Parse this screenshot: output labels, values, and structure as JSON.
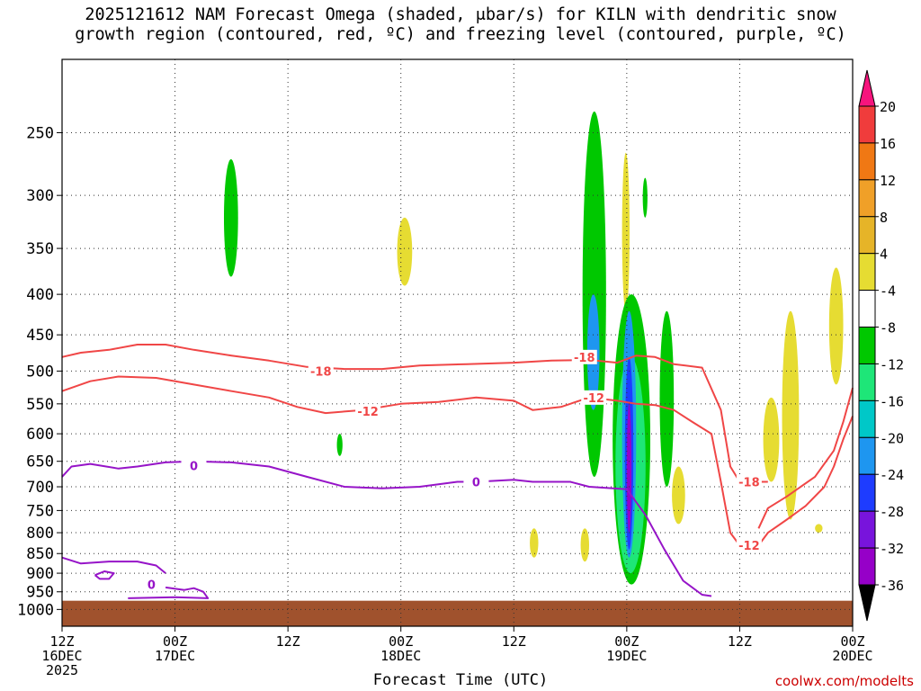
{
  "title_line1": "2025121612 NAM Forecast Omega (shaded, μbar/s) for KILN with dendritic snow",
  "title_line2": "growth region (contoured, red, ºC) and freezing level (contoured, purple, ºC)",
  "xlabel": "Forecast Time (UTC)",
  "source": "coolwx.com/modelts",
  "chart_data": {
    "type": "heatmap",
    "title": "2025121612 NAM Forecast Omega (shaded, μbar/s) for KILN with dendritic snow growth region (contoured, red, ºC) and freezing level (contoured, purple, ºC)",
    "xlabel": "Forecast Time (UTC)",
    "ylabel": "",
    "x_range_hours": [
      0,
      84
    ],
    "x_ticks": [
      {
        "h": 0,
        "l1": "12Z",
        "l2": "16DEC",
        "l3": "2025"
      },
      {
        "h": 12,
        "l1": "00Z",
        "l2": "17DEC",
        "l3": ""
      },
      {
        "h": 24,
        "l1": "12Z",
        "l2": "",
        "l3": ""
      },
      {
        "h": 36,
        "l1": "00Z",
        "l2": "18DEC",
        "l3": ""
      },
      {
        "h": 48,
        "l1": "12Z",
        "l2": "",
        "l3": ""
      },
      {
        "h": 60,
        "l1": "00Z",
        "l2": "19DEC",
        "l3": ""
      },
      {
        "h": 72,
        "l1": "12Z",
        "l2": "",
        "l3": ""
      },
      {
        "h": 84,
        "l1": "00Z",
        "l2": "20DEC",
        "l3": ""
      }
    ],
    "y_scale": "log-pressure",
    "y_range_hpa": [
      200,
      1050
    ],
    "y_ticks": [
      250,
      300,
      350,
      400,
      450,
      500,
      550,
      600,
      650,
      700,
      750,
      800,
      850,
      900,
      950,
      1000
    ],
    "grid": true,
    "ground_top_hpa": 975,
    "colorbar": {
      "levels": [
        20,
        16,
        12,
        8,
        4,
        -4,
        -8,
        -12,
        -16,
        -20,
        -24,
        -28,
        -32,
        -36
      ],
      "colors": [
        "#f7147d",
        "#f03c3c",
        "#f07814",
        "#f0a028",
        "#e6b428",
        "#e6dc32",
        "#ffffff",
        "#00c800",
        "#1ee678",
        "#00c8c8",
        "#1e96f0",
        "#1e3cff",
        "#7814dc",
        "#9600c8",
        "#a0a0a0",
        "#000000"
      ]
    },
    "contours": [
      {
        "label": "-18",
        "color": "#f04646",
        "labels_at": [
          [
            27.5,
            500
          ],
          [
            55.5,
            480
          ],
          [
            73,
            690
          ]
        ],
        "points": [
          [
            0,
            480
          ],
          [
            2,
            474
          ],
          [
            5,
            470
          ],
          [
            8,
            463
          ],
          [
            11,
            463
          ],
          [
            14,
            470
          ],
          [
            18,
            478
          ],
          [
            22,
            485
          ],
          [
            26,
            494
          ],
          [
            30,
            497
          ],
          [
            34,
            497
          ],
          [
            38,
            492
          ],
          [
            43,
            490
          ],
          [
            48,
            488
          ],
          [
            52,
            485
          ],
          [
            56,
            484
          ],
          [
            59,
            488
          ],
          [
            61,
            478
          ],
          [
            63,
            480
          ],
          [
            65,
            490
          ],
          [
            68,
            495
          ],
          [
            70,
            560
          ],
          [
            71,
            660
          ],
          [
            72,
            690
          ],
          [
            74,
            690
          ],
          [
            75,
            690
          ]
        ]
      },
      {
        "label": "-12",
        "color": "#f04646",
        "labels_at": [
          [
            32.5,
            562
          ],
          [
            56.5,
            540
          ],
          [
            73,
            830
          ]
        ],
        "points": [
          [
            0,
            530
          ],
          [
            3,
            515
          ],
          [
            6,
            508
          ],
          [
            10,
            510
          ],
          [
            14,
            520
          ],
          [
            18,
            530
          ],
          [
            22,
            540
          ],
          [
            25,
            555
          ],
          [
            28,
            565
          ],
          [
            32,
            560
          ],
          [
            36,
            550
          ],
          [
            40,
            547
          ],
          [
            44,
            540
          ],
          [
            48,
            545
          ],
          [
            50,
            560
          ],
          [
            53,
            555
          ],
          [
            56,
            540
          ],
          [
            59,
            545
          ],
          [
            61,
            550
          ],
          [
            63,
            552
          ],
          [
            65,
            560
          ],
          [
            67,
            580
          ],
          [
            69,
            600
          ],
          [
            70,
            690
          ],
          [
            71,
            800
          ],
          [
            72,
            830
          ],
          [
            74,
            830
          ],
          [
            75,
            800
          ],
          [
            77,
            770
          ],
          [
            79,
            740
          ],
          [
            81,
            700
          ],
          [
            82,
            660
          ],
          [
            83,
            610
          ],
          [
            84,
            570
          ]
        ]
      },
      {
        "label": "-18",
        "color": "#f04646",
        "labels_at": [],
        "points": [
          [
            74,
            790
          ],
          [
            75,
            745
          ],
          [
            77,
            720
          ],
          [
            80,
            680
          ],
          [
            82,
            630
          ],
          [
            83,
            580
          ],
          [
            84,
            525
          ]
        ]
      },
      {
        "label": "0",
        "color": "#9614c8",
        "labels_at": [
          [
            14,
            658
          ],
          [
            44,
            690
          ]
        ],
        "points": [
          [
            0,
            680
          ],
          [
            1,
            660
          ],
          [
            3,
            655
          ],
          [
            6,
            664
          ],
          [
            8,
            660
          ],
          [
            11,
            652
          ],
          [
            14,
            650
          ],
          [
            18,
            652
          ],
          [
            22,
            660
          ],
          [
            26,
            680
          ],
          [
            30,
            700
          ],
          [
            34,
            703
          ],
          [
            38,
            700
          ],
          [
            42,
            690
          ],
          [
            44,
            690
          ],
          [
            46,
            688
          ],
          [
            48,
            686
          ],
          [
            50,
            690
          ],
          [
            54,
            690
          ],
          [
            56,
            700
          ],
          [
            60,
            705
          ],
          [
            62,
            760
          ],
          [
            64,
            840
          ],
          [
            66,
            920
          ],
          [
            68,
            958
          ],
          [
            69,
            962
          ]
        ]
      },
      {
        "label": "",
        "color": "#9614c8",
        "labels_at": [],
        "points": [
          [
            0,
            860
          ],
          [
            2,
            875
          ],
          [
            5,
            870
          ],
          [
            8,
            870
          ],
          [
            10,
            880
          ],
          [
            11,
            900
          ]
        ]
      },
      {
        "label": "",
        "color": "#9614c8",
        "labels_at": [],
        "points": [
          [
            3.5,
            905
          ],
          [
            4.5,
            895
          ],
          [
            5.5,
            900
          ],
          [
            5,
            915
          ],
          [
            4,
            915
          ],
          [
            3.5,
            905
          ]
        ]
      },
      {
        "label": "0",
        "color": "#9614c8",
        "labels_at": [
          [
            9.5,
            930
          ]
        ],
        "points": [
          [
            11,
            938
          ],
          [
            13,
            945
          ],
          [
            14,
            940
          ],
          [
            15,
            950
          ],
          [
            15.5,
            968
          ],
          [
            12,
            965
          ],
          [
            7,
            968
          ]
        ]
      }
    ],
    "shaded": [
      {
        "value": -8,
        "color": "#00c800",
        "h0": 17.2,
        "h1": 18.7,
        "p0": 270,
        "p1": 380
      },
      {
        "value": -8,
        "color": "#00c800",
        "h0": 29.2,
        "h1": 29.8,
        "p0": 600,
        "p1": 640
      },
      {
        "value": 8,
        "color": "#e6dc32",
        "h0": 35.6,
        "h1": 37.2,
        "p0": 320,
        "p1": 390
      },
      {
        "value": 8,
        "color": "#e6dc32",
        "h0": 49.7,
        "h1": 50.6,
        "p0": 790,
        "p1": 860
      },
      {
        "value": -8,
        "color": "#00c800",
        "h0": 55.3,
        "h1": 57.8,
        "p0": 235,
        "p1": 680
      },
      {
        "value": -16,
        "color": "#1e96f0",
        "h0": 55.8,
        "h1": 57.1,
        "p0": 400,
        "p1": 560
      },
      {
        "value": 8,
        "color": "#e6dc32",
        "h0": 55.1,
        "h1": 56.0,
        "p0": 790,
        "p1": 870
      },
      {
        "value": 8,
        "color": "#e6dc32",
        "h0": 59.5,
        "h1": 60.3,
        "p0": 265,
        "p1": 420
      },
      {
        "value": -8,
        "color": "#00c800",
        "h0": 58.5,
        "h1": 62.5,
        "p0": 400,
        "p1": 930
      },
      {
        "value": -12,
        "color": "#1ee678",
        "h0": 58.8,
        "h1": 62.0,
        "p0": 480,
        "p1": 900
      },
      {
        "value": -16,
        "color": "#1e96f0",
        "h0": 59.5,
        "h1": 61.0,
        "p0": 420,
        "p1": 860
      },
      {
        "value": -20,
        "color": "#1e3cff",
        "h0": 59.8,
        "h1": 60.7,
        "p0": 480,
        "p1": 840
      },
      {
        "value": -28,
        "color": "#9600c8",
        "h0": 60.0,
        "h1": 60.5,
        "p0": 550,
        "p1": 800
      },
      {
        "value": -8,
        "color": "#00c800",
        "h0": 61.7,
        "h1": 62.2,
        "p0": 285,
        "p1": 320
      },
      {
        "value": -8,
        "color": "#00c800",
        "h0": 63.5,
        "h1": 65.0,
        "p0": 420,
        "p1": 700
      },
      {
        "value": 8,
        "color": "#e6dc32",
        "h0": 64.8,
        "h1": 66.2,
        "p0": 660,
        "p1": 780
      },
      {
        "value": 8,
        "color": "#e6dc32",
        "h0": 76.5,
        "h1": 78.3,
        "p0": 420,
        "p1": 770
      },
      {
        "value": 8,
        "color": "#e6dc32",
        "h0": 74.5,
        "h1": 76.2,
        "p0": 540,
        "p1": 690
      },
      {
        "value": 8,
        "color": "#e6dc32",
        "h0": 81.5,
        "h1": 83.0,
        "p0": 370,
        "p1": 520
      },
      {
        "value": 8,
        "color": "#e6dc32",
        "h0": 80.0,
        "h1": 80.8,
        "p0": 780,
        "p1": 800
      }
    ]
  }
}
